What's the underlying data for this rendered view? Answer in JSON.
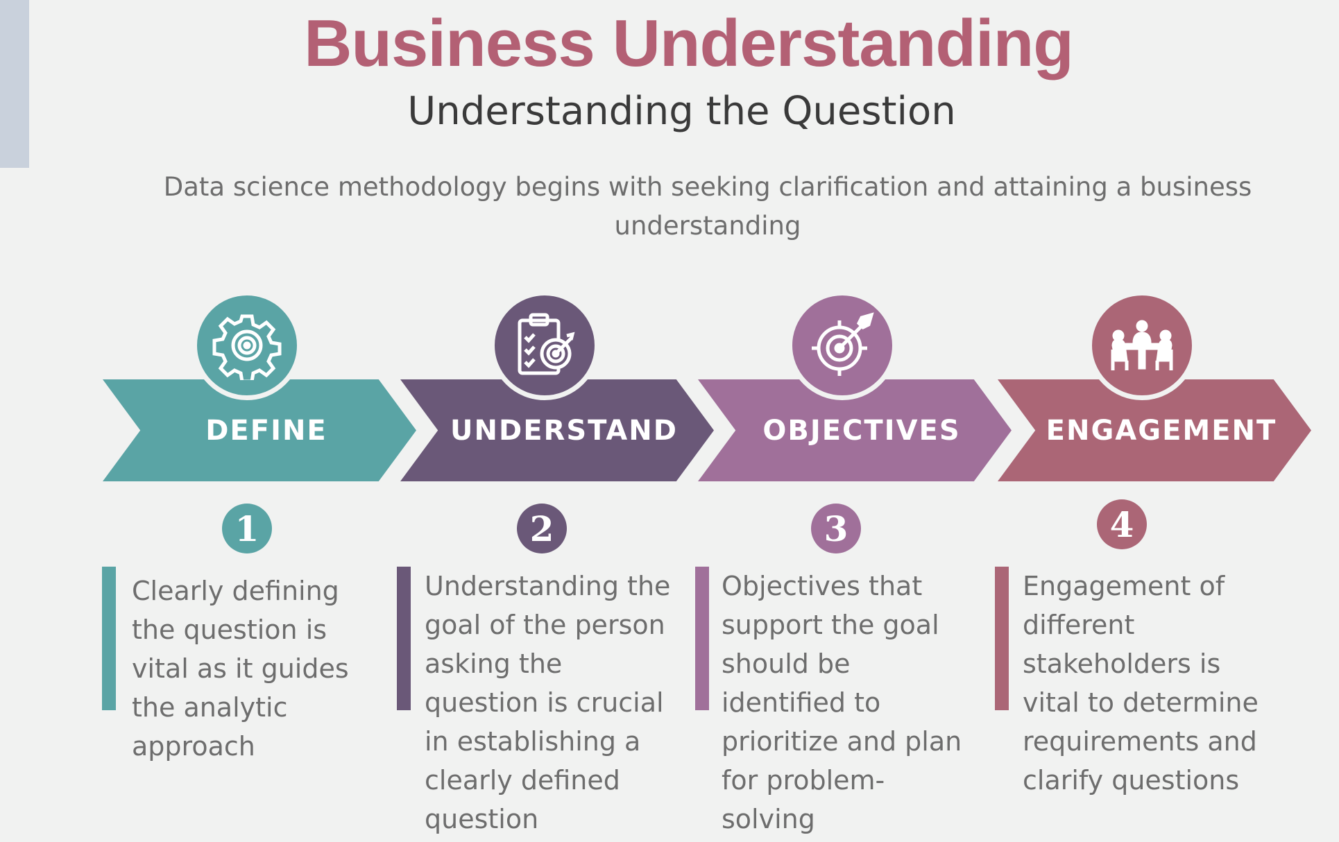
{
  "title": "Business Understanding",
  "subtitle": "Understanding the Question",
  "intro": "Data science methodology begins with seeking clarification and attaining a business understanding",
  "steps": [
    {
      "label": "DEFINE",
      "number": "1",
      "color": "#5aa4a5",
      "icon": "gear-target-icon",
      "description": "Clearly defining the question is vital as it guides the analytic approach"
    },
    {
      "label": "UNDERSTAND",
      "number": "2",
      "color": "#6a5878",
      "icon": "clipboard-target-icon",
      "description": "Understanding the goal of the person asking the question is crucial in establishing a clearly defined question"
    },
    {
      "label": "OBJECTIVES",
      "number": "3",
      "color": "#a0709a",
      "icon": "target-dart-icon",
      "description": "Objectives that support the goal should be identified to prioritize and plan for problem-solving"
    },
    {
      "label": "ENGAGEMENT",
      "number": "4",
      "color": "#ab6676",
      "icon": "meeting-table-icon",
      "description": "Engagement of different stakeholders is vital to determine requirements and clarify questions"
    }
  ]
}
